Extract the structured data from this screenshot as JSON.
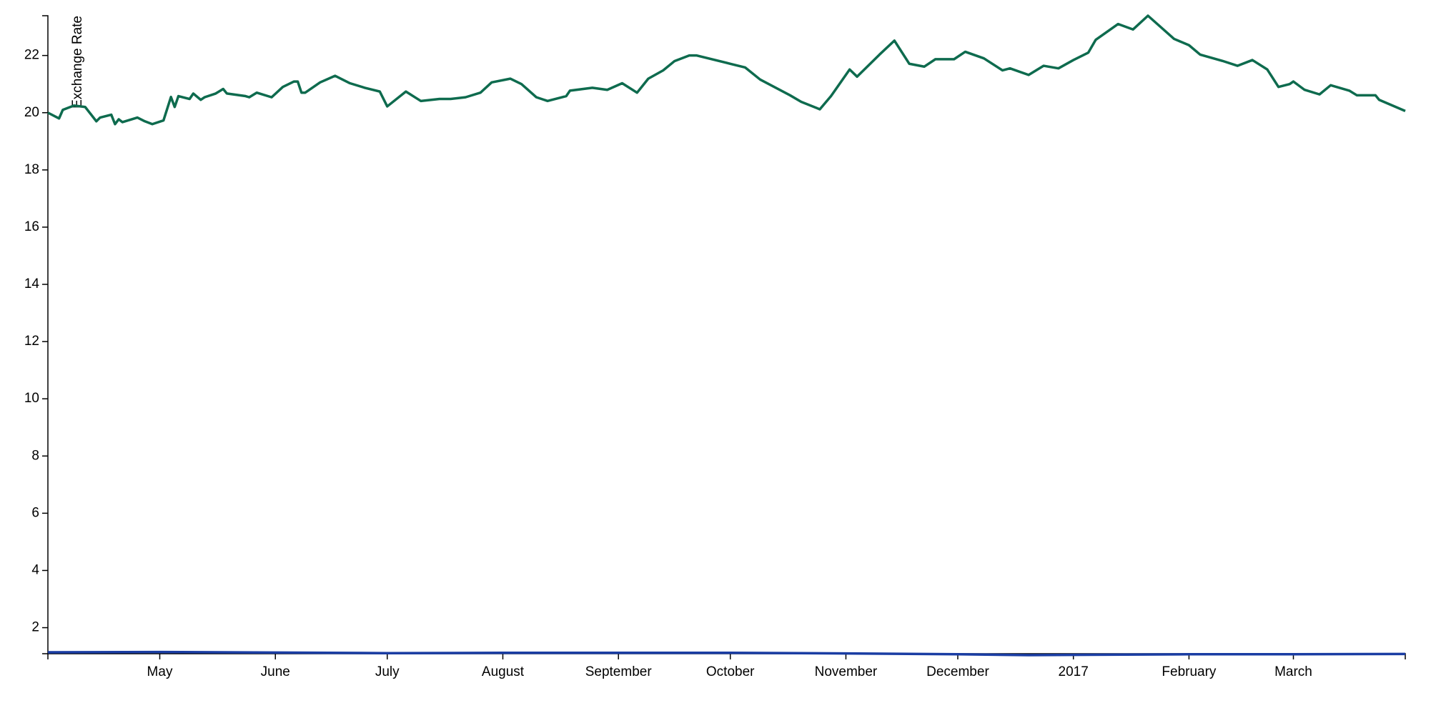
{
  "chart_data": {
    "type": "line",
    "y_label": "Exchange Rate",
    "xlim": [
      "2016-04-01",
      "2017-03-31"
    ],
    "xticks": [
      {
        "value": "2016-05-01",
        "label": "May"
      },
      {
        "value": "2016-06-01",
        "label": "June"
      },
      {
        "value": "2016-07-01",
        "label": "July"
      },
      {
        "value": "2016-08-01",
        "label": "August"
      },
      {
        "value": "2016-09-01",
        "label": "September"
      },
      {
        "value": "2016-10-01",
        "label": "October"
      },
      {
        "value": "2016-11-01",
        "label": "November"
      },
      {
        "value": "2016-12-01",
        "label": "December"
      },
      {
        "value": "2017-01-01",
        "label": "2017"
      },
      {
        "value": "2017-02-01",
        "label": "February"
      },
      {
        "value": "2017-03-01",
        "label": "March"
      }
    ],
    "ylim": [
      1.09,
      23.39
    ],
    "yticks": [
      2,
      4,
      6,
      8,
      10,
      12,
      14,
      16,
      18,
      20,
      22
    ],
    "series": [
      {
        "color": "#0e6b4e",
        "x": [
          "2016-04-01",
          "2016-04-04",
          "2016-04-05",
          "2016-04-08",
          "2016-04-11",
          "2016-04-14",
          "2016-04-15",
          "2016-04-18",
          "2016-04-19",
          "2016-04-20",
          "2016-04-21",
          "2016-04-25",
          "2016-04-27",
          "2016-04-29",
          "2016-05-02",
          "2016-05-04",
          "2016-05-05",
          "2016-05-06",
          "2016-05-09",
          "2016-05-10",
          "2016-05-12",
          "2016-05-13",
          "2016-05-16",
          "2016-05-18",
          "2016-05-19",
          "2016-05-24",
          "2016-05-25",
          "2016-05-27",
          "2016-05-31",
          "2016-06-03",
          "2016-06-06",
          "2016-06-07",
          "2016-06-08",
          "2016-06-09",
          "2016-06-13",
          "2016-06-17",
          "2016-06-21",
          "2016-06-25",
          "2016-06-29",
          "2016-07-01",
          "2016-07-06",
          "2016-07-10",
          "2016-07-15",
          "2016-07-18",
          "2016-07-22",
          "2016-07-26",
          "2016-07-29",
          "2016-08-03",
          "2016-08-06",
          "2016-08-10",
          "2016-08-13",
          "2016-08-18",
          "2016-08-19",
          "2016-08-25",
          "2016-08-29",
          "2016-09-02",
          "2016-09-06",
          "2016-09-09",
          "2016-09-13",
          "2016-09-16",
          "2016-09-20",
          "2016-09-22",
          "2016-10-01",
          "2016-10-05",
          "2016-10-09",
          "2016-10-17",
          "2016-10-20",
          "2016-10-25",
          "2016-10-28",
          "2016-11-02",
          "2016-11-04",
          "2016-11-10",
          "2016-11-14",
          "2016-11-18",
          "2016-11-22",
          "2016-11-25",
          "2016-11-30",
          "2016-12-03",
          "2016-12-08",
          "2016-12-13",
          "2016-12-15",
          "2016-12-20",
          "2016-12-24",
          "2016-12-28",
          "2017-01-01",
          "2017-01-05",
          "2017-01-07",
          "2017-01-13",
          "2017-01-17",
          "2017-01-21",
          "2017-01-28",
          "2017-02-01",
          "2017-02-04",
          "2017-02-10",
          "2017-02-14",
          "2017-02-18",
          "2017-02-22",
          "2017-02-25",
          "2017-02-28",
          "2017-03-01",
          "2017-03-04",
          "2017-03-08",
          "2017-03-11",
          "2017-03-16",
          "2017-03-18",
          "2017-03-23",
          "2017-03-24",
          "2017-03-31"
        ],
        "values": [
          20.0,
          19.8,
          20.1,
          20.25,
          20.2,
          19.7,
          19.83,
          19.93,
          19.6,
          19.77,
          19.67,
          19.83,
          19.7,
          19.6,
          19.73,
          20.55,
          20.2,
          20.58,
          20.48,
          20.67,
          20.45,
          20.54,
          20.67,
          20.83,
          20.67,
          20.58,
          20.54,
          20.7,
          20.54,
          20.9,
          21.09,
          21.09,
          20.7,
          20.7,
          21.06,
          21.29,
          21.03,
          20.87,
          20.74,
          20.22,
          20.74,
          20.41,
          20.48,
          20.48,
          20.54,
          20.7,
          21.06,
          21.19,
          21.0,
          20.54,
          20.41,
          20.58,
          20.77,
          20.87,
          20.8,
          21.03,
          20.7,
          21.19,
          21.48,
          21.8,
          22.0,
          22.0,
          21.71,
          21.58,
          21.16,
          20.61,
          20.38,
          20.12,
          20.58,
          21.51,
          21.26,
          22.03,
          22.52,
          21.71,
          21.61,
          21.87,
          21.87,
          22.13,
          21.9,
          21.48,
          21.55,
          21.32,
          21.64,
          21.55,
          21.84,
          22.1,
          22.55,
          23.1,
          22.91,
          23.39,
          22.58,
          22.36,
          22.03,
          21.81,
          21.64,
          21.84,
          21.51,
          20.9,
          21.0,
          21.09,
          20.8,
          20.64,
          20.96,
          20.77,
          20.61,
          20.61,
          20.45,
          20.06
        ]
      },
      {
        "color": "#1a3da3",
        "x": [
          "2016-04-01",
          "2016-05-01",
          "2016-06-01",
          "2016-07-01",
          "2016-08-01",
          "2016-09-01",
          "2016-10-01",
          "2016-11-01",
          "2016-12-01",
          "2016-12-20",
          "2017-01-01",
          "2017-02-01",
          "2017-03-01",
          "2017-03-31"
        ],
        "values": [
          1.14,
          1.15,
          1.13,
          1.11,
          1.12,
          1.12,
          1.12,
          1.1,
          1.07,
          1.04,
          1.05,
          1.07,
          1.07,
          1.08
        ]
      }
    ]
  }
}
